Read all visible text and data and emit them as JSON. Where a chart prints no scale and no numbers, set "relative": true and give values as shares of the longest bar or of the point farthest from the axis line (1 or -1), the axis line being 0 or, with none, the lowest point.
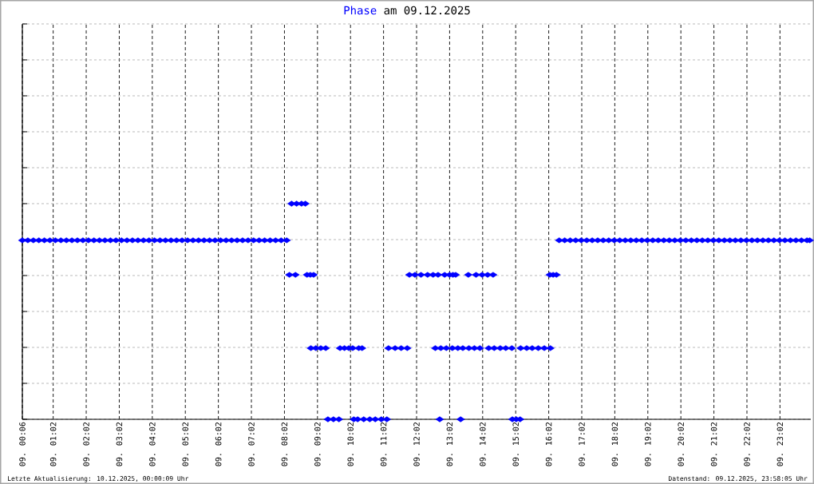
{
  "chart_data": {
    "type": "scatter",
    "title": "am 09.12.2025",
    "relative": true,
    "annotations": [
      "Letzte Aktualisierung: 10.12.2025, 00:00:09 Uhr",
      "Datenstand: 09.12.2025, 23:58:05 Uhr"
    ],
    "xlim": [
      "2025-12-09T00:06",
      "2025-12-09T23:58"
    ],
    "xticks": [
      {
        "value": "2025-12-09T00:06",
        "label": "09. 00:06"
      },
      {
        "value": "2025-12-09T01:02",
        "label": "09. 01:02"
      },
      {
        "value": "2025-12-09T02:02",
        "label": "09. 02:02"
      },
      {
        "value": "2025-12-09T03:02",
        "label": "09. 03:02"
      },
      {
        "value": "2025-12-09T04:02",
        "label": "09. 04:02"
      },
      {
        "value": "2025-12-09T05:02",
        "label": "09. 05:02"
      },
      {
        "value": "2025-12-09T06:02",
        "label": "09. 06:02"
      },
      {
        "value": "2025-12-09T07:02",
        "label": "09. 07:02"
      },
      {
        "value": "2025-12-09T08:02",
        "label": "09. 08:02"
      },
      {
        "value": "2025-12-09T09:02",
        "label": "09. 09:02"
      },
      {
        "value": "2025-12-09T10:02",
        "label": "09. 10:02"
      },
      {
        "value": "2025-12-09T11:02",
        "label": "09. 11:02"
      },
      {
        "value": "2025-12-09T12:02",
        "label": "09. 12:02"
      },
      {
        "value": "2025-12-09T13:02",
        "label": "09. 13:02"
      },
      {
        "value": "2025-12-09T14:02",
        "label": "09. 14:02"
      },
      {
        "value": "2025-12-09T15:02",
        "label": "09. 15:02"
      },
      {
        "value": "2025-12-09T16:02",
        "label": "09. 16:02"
      },
      {
        "value": "2025-12-09T17:02",
        "label": "09. 17:02"
      },
      {
        "value": "2025-12-09T18:02",
        "label": "09. 18:02"
      },
      {
        "value": "2025-12-09T19:02",
        "label": "09. 19:02"
      },
      {
        "value": "2025-12-09T20:02",
        "label": "09. 20:02"
      },
      {
        "value": "2025-12-09T21:02",
        "label": "09. 21:02"
      },
      {
        "value": "2025-12-09T22:02",
        "label": "09. 22:02"
      },
      {
        "value": "2025-12-09T23:02",
        "label": "09. 23:02"
      }
    ],
    "grid": true,
    "marker": "diamond",
    "series": [
      {
        "name": "Phase",
        "color": "#0000ff",
        "x": [
          "2025-12-09T00:06",
          "2025-12-09T00:16",
          "2025-12-09T00:26",
          "2025-12-09T00:36",
          "2025-12-09T00:46",
          "2025-12-09T00:56",
          "2025-12-09T01:06",
          "2025-12-09T01:16",
          "2025-12-09T01:26",
          "2025-12-09T01:36",
          "2025-12-09T01:46",
          "2025-12-09T01:56",
          "2025-12-09T02:06",
          "2025-12-09T02:16",
          "2025-12-09T02:26",
          "2025-12-09T02:36",
          "2025-12-09T02:46",
          "2025-12-09T02:56",
          "2025-12-09T03:06",
          "2025-12-09T03:16",
          "2025-12-09T03:26",
          "2025-12-09T03:36",
          "2025-12-09T03:46",
          "2025-12-09T03:56",
          "2025-12-09T04:06",
          "2025-12-09T04:16",
          "2025-12-09T04:26",
          "2025-12-09T04:36",
          "2025-12-09T04:46",
          "2025-12-09T04:56",
          "2025-12-09T05:06",
          "2025-12-09T05:16",
          "2025-12-09T05:26",
          "2025-12-09T05:36",
          "2025-12-09T05:46",
          "2025-12-09T05:56",
          "2025-12-09T06:06",
          "2025-12-09T06:16",
          "2025-12-09T06:26",
          "2025-12-09T06:36",
          "2025-12-09T06:46",
          "2025-12-09T06:56",
          "2025-12-09T07:06",
          "2025-12-09T07:16",
          "2025-12-09T07:26",
          "2025-12-09T07:36",
          "2025-12-09T07:46",
          "2025-12-09T07:56",
          "2025-12-09T08:06",
          "2025-12-09T08:11",
          "2025-12-09T08:15",
          "2025-12-09T08:22",
          "2025-12-09T08:24",
          "2025-12-09T08:33",
          "2025-12-09T08:40",
          "2025-12-09T08:43",
          "2025-12-09T08:49",
          "2025-12-09T08:50",
          "2025-12-09T08:55",
          "2025-12-09T08:59",
          "2025-12-09T09:08",
          "2025-12-09T09:17",
          "2025-12-09T09:21",
          "2025-12-09T09:31",
          "2025-12-09T09:41",
          "2025-12-09T09:43",
          "2025-12-09T09:51",
          "2025-12-09T09:59",
          "2025-12-09T10:06",
          "2025-12-09T10:08",
          "2025-12-09T10:15",
          "2025-12-09T10:17",
          "2025-12-09T10:23",
          "2025-12-09T10:26",
          "2025-12-09T10:37",
          "2025-12-09T10:47",
          "2025-12-09T10:58",
          "2025-12-09T11:08",
          "2025-12-09T11:11",
          "2025-12-09T11:23",
          "2025-12-09T11:34",
          "2025-12-09T11:45",
          "2025-12-09T11:49",
          "2025-12-09T11:59",
          "2025-12-09T12:10",
          "2025-12-09T12:22",
          "2025-12-09T12:32",
          "2025-12-09T12:36",
          "2025-12-09T12:41",
          "2025-12-09T12:44",
          "2025-12-09T12:46",
          "2025-12-09T12:53",
          "2025-12-09T12:56",
          "2025-12-09T13:02",
          "2025-12-09T13:07",
          "2025-12-09T13:08",
          "2025-12-09T13:13",
          "2025-12-09T13:17",
          "2025-12-09T13:22",
          "2025-12-09T13:26",
          "2025-12-09T13:36",
          "2025-12-09T13:37",
          "2025-12-09T13:47",
          "2025-12-09T13:50",
          "2025-12-09T13:57",
          "2025-12-09T14:01",
          "2025-12-09T14:11",
          "2025-12-09T14:13",
          "2025-12-09T14:21",
          "2025-12-09T14:23",
          "2025-12-09T14:34",
          "2025-12-09T14:44",
          "2025-12-09T14:55",
          "2025-12-09T14:56",
          "2025-12-09T15:03",
          "2025-12-09T15:10",
          "2025-12-09T15:11",
          "2025-12-09T15:22",
          "2025-12-09T15:32",
          "2025-12-09T15:43",
          "2025-12-09T15:54",
          "2025-12-09T16:04",
          "2025-12-09T16:05",
          "2025-12-09T16:10",
          "2025-12-09T16:16",
          "2025-12-09T16:21",
          "2025-12-09T16:31",
          "2025-12-09T16:41",
          "2025-12-09T16:51",
          "2025-12-09T17:01",
          "2025-12-09T17:11",
          "2025-12-09T17:21",
          "2025-12-09T17:31",
          "2025-12-09T17:41",
          "2025-12-09T17:51",
          "2025-12-09T18:01",
          "2025-12-09T18:11",
          "2025-12-09T18:21",
          "2025-12-09T18:31",
          "2025-12-09T18:41",
          "2025-12-09T18:51",
          "2025-12-09T19:01",
          "2025-12-09T19:11",
          "2025-12-09T19:21",
          "2025-12-09T19:31",
          "2025-12-09T19:41",
          "2025-12-09T19:51",
          "2025-12-09T20:01",
          "2025-12-09T20:11",
          "2025-12-09T20:21",
          "2025-12-09T20:31",
          "2025-12-09T20:41",
          "2025-12-09T20:51",
          "2025-12-09T21:01",
          "2025-12-09T21:11",
          "2025-12-09T21:21",
          "2025-12-09T21:31",
          "2025-12-09T21:41",
          "2025-12-09T21:51",
          "2025-12-09T22:01",
          "2025-12-09T22:11",
          "2025-12-09T22:21",
          "2025-12-09T22:31",
          "2025-12-09T22:41",
          "2025-12-09T22:51",
          "2025-12-09T23:01",
          "2025-12-09T23:11",
          "2025-12-09T23:21",
          "2025-12-09T23:31",
          "2025-12-09T23:41",
          "2025-12-09T23:51",
          "2025-12-09T23:56"
        ],
        "values": [
          0.83,
          0.83,
          0.83,
          0.83,
          0.83,
          0.83,
          0.83,
          0.83,
          0.83,
          0.83,
          0.83,
          0.83,
          0.83,
          0.83,
          0.83,
          0.83,
          0.83,
          0.83,
          0.83,
          0.83,
          0.83,
          0.83,
          0.83,
          0.83,
          0.83,
          0.83,
          0.83,
          0.83,
          0.83,
          0.83,
          0.83,
          0.83,
          0.83,
          0.83,
          0.83,
          0.83,
          0.83,
          0.83,
          0.83,
          0.83,
          0.83,
          0.83,
          0.83,
          0.83,
          0.83,
          0.83,
          0.83,
          0.83,
          0.83,
          0.67,
          1,
          0.67,
          1,
          1,
          1,
          0.67,
          0.67,
          0.33,
          0.67,
          0.33,
          0.33,
          0.33,
          0,
          0,
          0,
          0.33,
          0.33,
          0.33,
          0.33,
          0,
          0,
          0.33,
          0.33,
          0,
          0,
          0,
          0,
          0,
          0.33,
          0.33,
          0.33,
          0.33,
          0.67,
          0.67,
          0.67,
          0.67,
          0.67,
          0.33,
          0.67,
          0,
          0.33,
          0.67,
          0.33,
          0.67,
          0.33,
          0.67,
          0.67,
          0.33,
          0,
          0.33,
          0.67,
          0.33,
          0.33,
          0.67,
          0.33,
          0.67,
          0.67,
          0.33,
          0.67,
          0.33,
          0.33,
          0.33,
          0.33,
          0,
          0,
          0,
          0.33,
          0.33,
          0.33,
          0.33,
          0.33,
          0.67,
          0.33,
          0.67,
          0.67,
          0.83,
          0.83,
          0.83,
          0.83,
          0.83,
          0.83,
          0.83,
          0.83,
          0.83,
          0.83,
          0.83,
          0.83,
          0.83,
          0.83,
          0.83,
          0.83,
          0.83,
          0.83,
          0.83,
          0.83,
          0.83,
          0.83,
          0.83,
          0.83,
          0.83,
          0.83,
          0.83,
          0.83,
          0.83,
          0.83,
          0.83,
          0.83,
          0.83,
          0.83,
          0.83,
          0.83,
          0.83,
          0.83,
          0.83,
          0.83,
          0.83,
          0.83,
          0.83,
          0.83,
          0.83,
          0.83,
          0.83
        ]
      }
    ]
  }
}
